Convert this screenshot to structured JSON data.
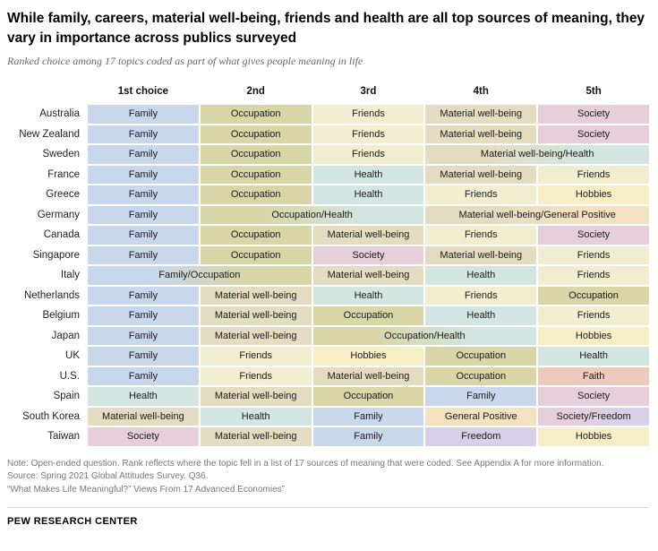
{
  "header": {
    "title": "While family, careers, material well-being, friends and health are all top sources of meaning, they vary in importance across publics surveyed",
    "subtitle": "Ranked choice among 17 topics coded as part of what gives people meaning in life"
  },
  "chart_data": {
    "type": "table",
    "columns": [
      "1st choice",
      "2nd",
      "3rd",
      "4th",
      "5th"
    ],
    "topic_colors": {
      "Family": "#c9d7ed",
      "Occupation": "#d8d5a6",
      "Friends": "#f1eecf",
      "Material well-being": "#e3dcc0",
      "Society": "#e6cfda",
      "Health": "#d2e5e0",
      "Hobbies": "#f8eec6",
      "General Positive": "#f4e1bf",
      "Faith": "#eec9bd",
      "Freedom": "#d7d0e8"
    },
    "rows": [
      {
        "country": "Australia",
        "cells": [
          {
            "label": "Family",
            "span": 1
          },
          {
            "label": "Occupation",
            "span": 1
          },
          {
            "label": "Friends",
            "span": 1
          },
          {
            "label": "Material well-being",
            "span": 1
          },
          {
            "label": "Society",
            "span": 1
          }
        ]
      },
      {
        "country": "New Zealand",
        "cells": [
          {
            "label": "Family",
            "span": 1
          },
          {
            "label": "Occupation",
            "span": 1
          },
          {
            "label": "Friends",
            "span": 1
          },
          {
            "label": "Material well-being",
            "span": 1
          },
          {
            "label": "Society",
            "span": 1
          }
        ]
      },
      {
        "country": "Sweden",
        "cells": [
          {
            "label": "Family",
            "span": 1
          },
          {
            "label": "Occupation",
            "span": 1
          },
          {
            "label": "Friends",
            "span": 1
          },
          {
            "label": "Material well-being/Health",
            "span": 2
          }
        ]
      },
      {
        "country": "France",
        "cells": [
          {
            "label": "Family",
            "span": 1
          },
          {
            "label": "Occupation",
            "span": 1
          },
          {
            "label": "Health",
            "span": 1
          },
          {
            "label": "Material well-being",
            "span": 1
          },
          {
            "label": "Friends",
            "span": 1
          }
        ]
      },
      {
        "country": "Greece",
        "cells": [
          {
            "label": "Family",
            "span": 1
          },
          {
            "label": "Occupation",
            "span": 1
          },
          {
            "label": "Health",
            "span": 1
          },
          {
            "label": "Friends",
            "span": 1
          },
          {
            "label": "Hobbies",
            "span": 1
          }
        ]
      },
      {
        "country": "Germany",
        "cells": [
          {
            "label": "Family",
            "span": 1
          },
          {
            "label": "Occupation/Health",
            "span": 2
          },
          {
            "label": "Material well-being/General Positive",
            "span": 2
          }
        ]
      },
      {
        "country": "Canada",
        "cells": [
          {
            "label": "Family",
            "span": 1
          },
          {
            "label": "Occupation",
            "span": 1
          },
          {
            "label": "Material well-being",
            "span": 1
          },
          {
            "label": "Friends",
            "span": 1
          },
          {
            "label": "Society",
            "span": 1
          }
        ]
      },
      {
        "country": "Singapore",
        "cells": [
          {
            "label": "Family",
            "span": 1
          },
          {
            "label": "Occupation",
            "span": 1
          },
          {
            "label": "Society",
            "span": 1
          },
          {
            "label": "Material well-being",
            "span": 1
          },
          {
            "label": "Friends",
            "span": 1
          }
        ]
      },
      {
        "country": "Italy",
        "cells": [
          {
            "label": "Family/Occupation",
            "span": 2
          },
          {
            "label": "Material well-being",
            "span": 1
          },
          {
            "label": "Health",
            "span": 1
          },
          {
            "label": "Friends",
            "span": 1
          }
        ]
      },
      {
        "country": "Netherlands",
        "cells": [
          {
            "label": "Family",
            "span": 1
          },
          {
            "label": "Material well-being",
            "span": 1
          },
          {
            "label": "Health",
            "span": 1
          },
          {
            "label": "Friends",
            "span": 1
          },
          {
            "label": "Occupation",
            "span": 1
          }
        ]
      },
      {
        "country": "Belgium",
        "cells": [
          {
            "label": "Family",
            "span": 1
          },
          {
            "label": "Material well-being",
            "span": 1
          },
          {
            "label": "Occupation",
            "span": 1
          },
          {
            "label": "Health",
            "span": 1
          },
          {
            "label": "Friends",
            "span": 1
          }
        ]
      },
      {
        "country": "Japan",
        "cells": [
          {
            "label": "Family",
            "span": 1
          },
          {
            "label": "Material well-being",
            "span": 1
          },
          {
            "label": "Occupation/Health",
            "span": 2
          },
          {
            "label": "Hobbies",
            "span": 1
          }
        ]
      },
      {
        "country": "UK",
        "cells": [
          {
            "label": "Family",
            "span": 1
          },
          {
            "label": "Friends",
            "span": 1
          },
          {
            "label": "Hobbies",
            "span": 1
          },
          {
            "label": "Occupation",
            "span": 1
          },
          {
            "label": "Health",
            "span": 1
          }
        ]
      },
      {
        "country": "U.S.",
        "cells": [
          {
            "label": "Family",
            "span": 1
          },
          {
            "label": "Friends",
            "span": 1
          },
          {
            "label": "Material well-being",
            "span": 1
          },
          {
            "label": "Occupation",
            "span": 1
          },
          {
            "label": "Faith",
            "span": 1
          }
        ]
      },
      {
        "country": "Spain",
        "cells": [
          {
            "label": "Health",
            "span": 1
          },
          {
            "label": "Material well-being",
            "span": 1
          },
          {
            "label": "Occupation",
            "span": 1
          },
          {
            "label": "Family",
            "span": 1
          },
          {
            "label": "Society",
            "span": 1
          }
        ]
      },
      {
        "country": "South Korea",
        "cells": [
          {
            "label": "Material well-being",
            "span": 1
          },
          {
            "label": "Health",
            "span": 1
          },
          {
            "label": "Family",
            "span": 1
          },
          {
            "label": "General Positive",
            "span": 1
          },
          {
            "label": "Society/Freedom",
            "span": 1
          }
        ]
      },
      {
        "country": "Taiwan",
        "cells": [
          {
            "label": "Society",
            "span": 1
          },
          {
            "label": "Material well-being",
            "span": 1
          },
          {
            "label": "Family",
            "span": 1
          },
          {
            "label": "Freedom",
            "span": 1
          },
          {
            "label": "Hobbies",
            "span": 1
          }
        ]
      }
    ]
  },
  "notes": {
    "note": "Note: Open-ended question. Rank reflects where the topic fell in a list of 17 sources of meaning that were coded. See Appendix A for more information.",
    "source": "Source: Spring 2021 Global Attitudes Survey. Q36.",
    "report": "“What Makes Life Meaningful?” Views From 17 Advanced Economies”"
  },
  "footer": {
    "brand": "PEW RESEARCH CENTER"
  }
}
